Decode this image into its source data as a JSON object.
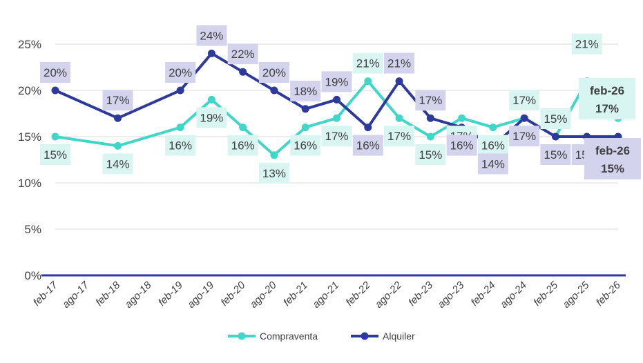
{
  "chart_data": {
    "type": "line",
    "x": [
      "feb-17",
      "ago-17",
      "feb-18",
      "ago-18",
      "feb-19",
      "ago-19",
      "feb-20",
      "ago-20",
      "feb-21",
      "ago-21",
      "feb-22",
      "ago-22",
      "feb-23",
      "ago-23",
      "feb-24",
      "ago-24",
      "feb-25",
      "ago-25",
      "feb-26"
    ],
    "yticks": [
      "0%",
      "5%",
      "10%",
      "15%",
      "20%",
      "25%"
    ],
    "ylim": [
      0,
      25
    ],
    "grid": true,
    "legend_position": "bottom",
    "series": [
      {
        "name": "Compraventa",
        "color": "#40D6C8",
        "label_bg": "#D9F5F2",
        "values": [
          15,
          null,
          14,
          null,
          16,
          19,
          16,
          13,
          16,
          17,
          21,
          17,
          15,
          17,
          16,
          17,
          15,
          21,
          17
        ],
        "labels": [
          "15%",
          null,
          "14%",
          null,
          "16%",
          "19%",
          "16%",
          "13%",
          "16%",
          "17%",
          "21%",
          "17%",
          "15%",
          "17%",
          "16%",
          "17%",
          "15%",
          "21%",
          null
        ],
        "final_label": [
          "feb-26",
          "17%"
        ]
      },
      {
        "name": "Alquiler",
        "color": "#2E3A9B",
        "label_bg": "#D3D3EE",
        "values": [
          20,
          null,
          17,
          null,
          20,
          24,
          22,
          20,
          18,
          19,
          16,
          21,
          17,
          16,
          14,
          17,
          15,
          15,
          15
        ],
        "labels": [
          "20%",
          null,
          "17%",
          null,
          "20%",
          "24%",
          "22%",
          "20%",
          "18%",
          "19%",
          "16%",
          "21%",
          "17%",
          "16%",
          "14%",
          "17%",
          "15%",
          "15%",
          null
        ],
        "final_label": [
          "feb-26",
          "15%"
        ]
      }
    ]
  }
}
